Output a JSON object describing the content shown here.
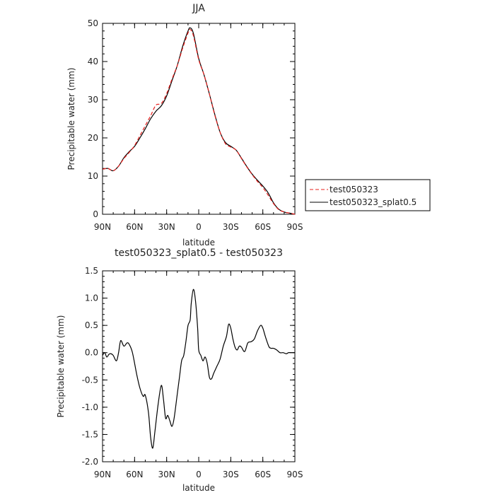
{
  "chart_data": [
    {
      "type": "line",
      "title": "JJA",
      "xlabel": "latitude",
      "ylabel": "Precipitable water (mm)",
      "xlim": [
        90,
        -90
      ],
      "ylim": [
        0,
        50
      ],
      "x_ticks": [
        90,
        60,
        30,
        0,
        -30,
        -60,
        -90
      ],
      "x_tick_labels": [
        "90N",
        "60N",
        "30N",
        "0",
        "30S",
        "60S",
        "90S"
      ],
      "y_ticks": [
        0,
        10,
        20,
        30,
        40,
        50
      ],
      "y_tick_labels": [
        "0",
        "10",
        "20",
        "30",
        "40",
        "50"
      ],
      "grid": false,
      "legend": "right",
      "series": [
        {
          "name": "test050323",
          "color": "#e8201e",
          "dash": "dashed",
          "x": [
            90,
            85,
            80,
            75,
            70,
            65,
            60,
            55,
            50,
            45,
            40,
            35,
            30,
            25,
            20,
            15,
            10,
            8,
            5,
            0,
            -5,
            -10,
            -15,
            -20,
            -25,
            -30,
            -35,
            -40,
            -45,
            -50,
            -55,
            -60,
            -65,
            -70,
            -75,
            -80,
            -85,
            -90
          ],
          "y": [
            11.8,
            12.0,
            11.4,
            12.6,
            14.6,
            16.2,
            18.0,
            20.6,
            23.2,
            25.8,
            28.6,
            29.0,
            31.6,
            35.4,
            39.0,
            43.5,
            47.5,
            48.4,
            46.8,
            40.5,
            36.5,
            31.5,
            26.0,
            21.5,
            18.5,
            17.6,
            16.8,
            14.6,
            12.4,
            10.4,
            8.6,
            7.0,
            5.0,
            2.8,
            1.2,
            0.6,
            0.3,
            0.0
          ]
        },
        {
          "name": "test050323_splat0.5",
          "color": "#000000",
          "dash": "solid",
          "x": [
            90,
            85,
            80,
            75,
            70,
            65,
            60,
            55,
            50,
            45,
            40,
            35,
            30,
            25,
            20,
            15,
            10,
            8,
            5,
            0,
            -5,
            -10,
            -15,
            -20,
            -25,
            -30,
            -35,
            -40,
            -45,
            -50,
            -55,
            -60,
            -65,
            -70,
            -75,
            -80,
            -85,
            -90
          ],
          "y": [
            11.8,
            12.0,
            11.4,
            12.6,
            14.8,
            16.4,
            17.8,
            20.0,
            22.4,
            25.0,
            27.0,
            28.4,
            31.0,
            35.0,
            39.0,
            44.0,
            48.0,
            48.8,
            47.4,
            40.8,
            36.5,
            31.5,
            26.2,
            21.5,
            18.8,
            17.8,
            16.8,
            14.7,
            12.5,
            10.5,
            8.9,
            7.4,
            5.6,
            3.0,
            1.3,
            0.6,
            0.3,
            0.0
          ]
        }
      ]
    },
    {
      "type": "line",
      "title": "test050323_splat0.5 - test050323",
      "xlabel": "latitude",
      "ylabel": "Precipitable water (mm)",
      "xlim": [
        90,
        -90
      ],
      "ylim": [
        -2.0,
        1.5
      ],
      "x_ticks": [
        90,
        60,
        30,
        0,
        -30,
        -60,
        -90
      ],
      "x_tick_labels": [
        "90N",
        "60N",
        "30N",
        "0",
        "30S",
        "60S",
        "90S"
      ],
      "y_ticks": [
        -2.0,
        -1.5,
        -1.0,
        -0.5,
        0.0,
        0.5,
        1.0,
        1.5
      ],
      "y_tick_labels": [
        "-2.0",
        "-1.5",
        "-1.0",
        "-0.5",
        "0.0",
        "0.5",
        "1.0",
        "1.5"
      ],
      "grid": false,
      "series": [
        {
          "name": "",
          "color": "#000000",
          "dash": "solid",
          "x": [
            90,
            88,
            86,
            84,
            82,
            80,
            77,
            75,
            73,
            70,
            67,
            65,
            62,
            58,
            55,
            52,
            50,
            47,
            45,
            43,
            41,
            38,
            35,
            33,
            31,
            29,
            27,
            25,
            23,
            20,
            18,
            16,
            14,
            12,
            10,
            8,
            7,
            5,
            3,
            1,
            0,
            -2,
            -4,
            -6,
            -8,
            -10,
            -12,
            -14,
            -17,
            -20,
            -23,
            -26,
            -28,
            -30,
            -32,
            -34,
            -36,
            -38,
            -40,
            -43,
            -46,
            -49,
            -52,
            -55,
            -58,
            -60,
            -62,
            -64,
            -66,
            -68,
            -70,
            -73,
            -76,
            -79,
            -82,
            -84,
            -86,
            -88,
            -90
          ],
          "y": [
            -0.05,
            0.0,
            -0.08,
            -0.03,
            -0.02,
            -0.05,
            -0.15,
            0.0,
            0.22,
            0.12,
            0.18,
            0.15,
            0.0,
            -0.4,
            -0.65,
            -0.8,
            -0.78,
            -1.1,
            -1.55,
            -1.75,
            -1.45,
            -0.95,
            -0.6,
            -0.85,
            -1.2,
            -1.15,
            -1.25,
            -1.35,
            -1.2,
            -0.75,
            -0.45,
            -0.15,
            -0.05,
            0.2,
            0.5,
            0.6,
            0.9,
            1.16,
            0.95,
            0.45,
            0.05,
            -0.05,
            -0.15,
            -0.08,
            -0.2,
            -0.45,
            -0.48,
            -0.38,
            -0.25,
            -0.12,
            0.12,
            0.3,
            0.52,
            0.45,
            0.25,
            0.1,
            0.05,
            0.12,
            0.1,
            0.02,
            0.18,
            0.2,
            0.25,
            0.4,
            0.5,
            0.45,
            0.32,
            0.2,
            0.1,
            0.08,
            0.08,
            0.05,
            0.0,
            0.0,
            -0.02,
            0.0,
            0.0,
            0.0,
            0.0
          ]
        }
      ]
    }
  ]
}
